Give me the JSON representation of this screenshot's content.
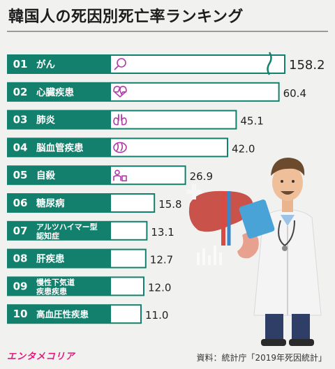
{
  "title": "韓国人の死因別死亡率ランキング",
  "source": "資料：統計庁「2019年死因統計」",
  "logo": "エンタメコリア",
  "colors": {
    "accent": "#13806d",
    "bar_fill": "#ffffff",
    "icon": "#b23aa8"
  },
  "chart_data": {
    "type": "bar",
    "orientation": "horizontal",
    "axis_break_on": "01",
    "categories": [
      {
        "rank": "01",
        "label": [
          "がん"
        ],
        "icon": "magnifier-icon"
      },
      {
        "rank": "02",
        "label": [
          "心臓疾患"
        ],
        "icon": "heart-icon"
      },
      {
        "rank": "03",
        "label": [
          "肺炎"
        ],
        "icon": "lungs-icon"
      },
      {
        "rank": "04",
        "label": [
          "脳血管疾患"
        ],
        "icon": "brain-icon"
      },
      {
        "rank": "05",
        "label": [
          "自殺"
        ],
        "icon": "person-icon"
      },
      {
        "rank": "06",
        "label": [
          "糖尿病"
        ],
        "icon": null
      },
      {
        "rank": "07",
        "label": [
          "アルツハイマー型",
          "認知症"
        ],
        "icon": null
      },
      {
        "rank": "08",
        "label": [
          "肝疾患"
        ],
        "icon": null
      },
      {
        "rank": "09",
        "label": [
          "慢性下気道",
          "疾患疾患"
        ],
        "icon": null
      },
      {
        "rank": "10",
        "label": [
          "高血圧性疾患"
        ],
        "icon": null
      }
    ],
    "values": [
      158.2,
      60.4,
      45.1,
      42.0,
      26.9,
      15.8,
      13.1,
      12.7,
      12.0,
      11.0
    ],
    "value_labels": [
      "158.2",
      "60.4",
      "45.1",
      "42.0",
      "26.9",
      "15.8",
      "13.1",
      "12.7",
      "12.0",
      "11.0"
    ]
  }
}
